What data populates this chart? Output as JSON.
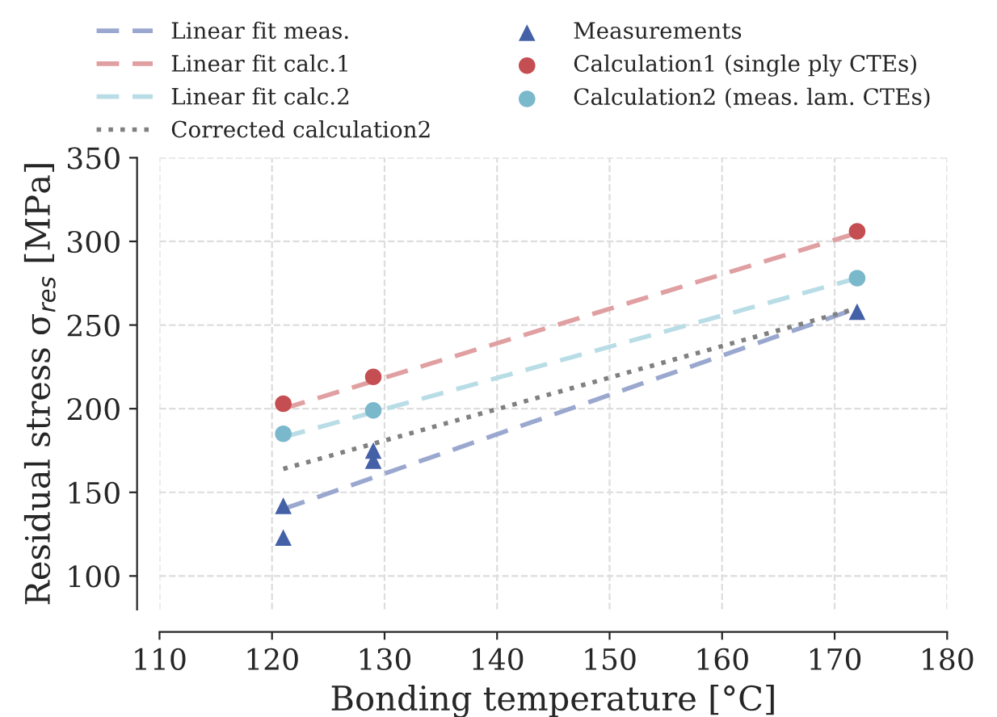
{
  "chart_data": {
    "type": "scatter",
    "xlabel": "Bonding temperature [°C]",
    "ylabel": "Residual stress σ$_{res}$ [MPa]",
    "xlim": [
      110,
      180
    ],
    "xticks": [
      110,
      120,
      130,
      140,
      150,
      160,
      170,
      180
    ],
    "ylim": [
      80,
      350
    ],
    "yticks": [
      100,
      150,
      200,
      250,
      300,
      350
    ],
    "grid": true,
    "legend": "top",
    "series": [
      {
        "name": "Linear fit meas.",
        "type": "line",
        "line_style": "dashed",
        "marker": "none",
        "color": "#9aa8cf",
        "x": [
          121,
          172
        ],
        "values": [
          140,
          260
        ]
      },
      {
        "name": "Linear fit calc.1",
        "type": "line",
        "line_style": "dashed",
        "marker": "none",
        "color": "#e09fa1",
        "x": [
          121,
          172
        ],
        "values": [
          200,
          305
        ]
      },
      {
        "name": "Linear fit calc.2",
        "type": "line",
        "line_style": "dashed",
        "marker": "none",
        "color": "#b9dde6",
        "x": [
          121,
          172
        ],
        "values": [
          183,
          278
        ]
      },
      {
        "name": "Corrected calculation2",
        "type": "line",
        "line_style": "dotted",
        "marker": "none",
        "color": "#808080",
        "x": [
          121,
          172
        ],
        "values": [
          164,
          260
        ]
      },
      {
        "name": "Measurements",
        "marker": "triangle",
        "color": "#4461a8",
        "x": [
          121,
          121,
          129,
          129,
          172
        ],
        "values": [
          123,
          142,
          169,
          175,
          258
        ]
      },
      {
        "name": "Calculation1 (single ply CTEs)",
        "marker": "circle",
        "color": "#c44e52",
        "x": [
          121,
          129,
          172
        ],
        "values": [
          203,
          219,
          306
        ]
      },
      {
        "name": "Calculation2 (meas. lam. CTEs)",
        "marker": "circle",
        "color": "#7ab8cc",
        "x": [
          121,
          129,
          172
        ],
        "values": [
          185,
          199,
          278
        ]
      }
    ]
  }
}
